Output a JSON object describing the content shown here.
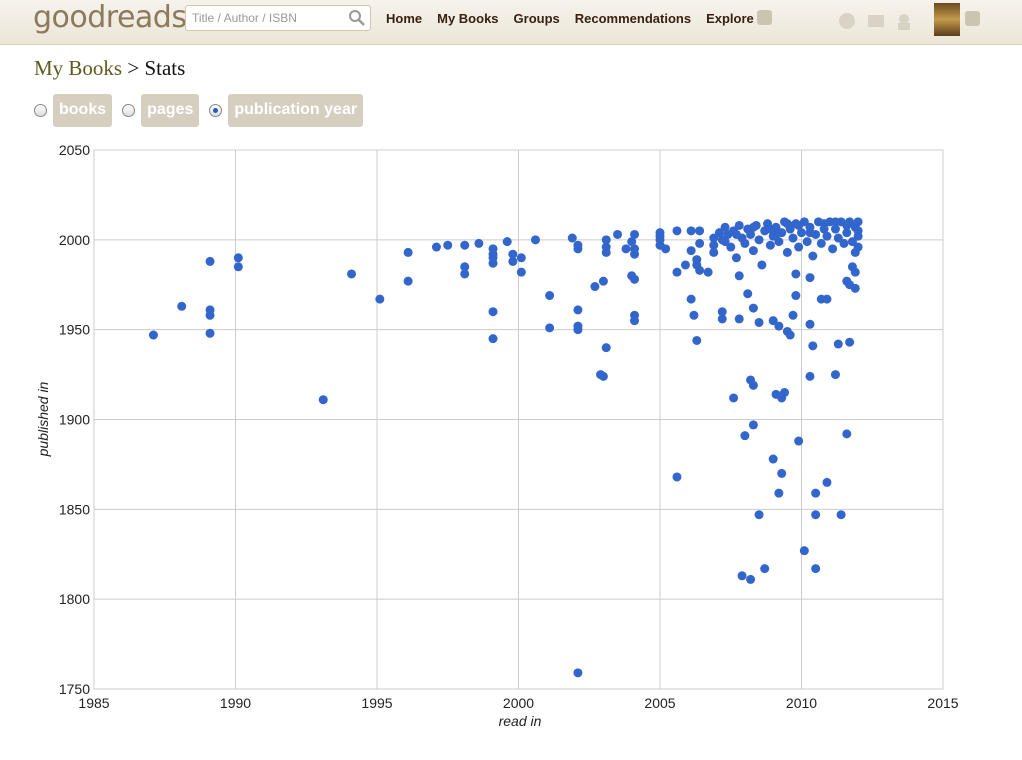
{
  "header": {
    "logo": "goodreads",
    "search_placeholder": "Title / Author / ISBN",
    "nav": [
      "Home",
      "My Books",
      "Groups",
      "Recommendations",
      "Explore"
    ]
  },
  "breadcrumb": {
    "link": "My Books",
    "current": "> Stats"
  },
  "options": {
    "labels": [
      "books",
      "pages",
      "publication year"
    ],
    "selected": 2
  },
  "chart_data": {
    "type": "scatter",
    "x_label": "read in",
    "y_label": "published in",
    "color": "#3366cc",
    "grid": true,
    "xlim": [
      1985,
      2015
    ],
    "xticks": [
      1985,
      1990,
      1995,
      2000,
      2005,
      2010,
      2015
    ],
    "ylim": [
      1750,
      2050
    ],
    "yticks": [
      1750,
      1800,
      1850,
      1900,
      1950,
      2000,
      2050
    ],
    "x": [
      1987.1,
      1988.1,
      1989.1,
      1989.1,
      1989.1,
      1989.1,
      1990.1,
      1990.1,
      1993.1,
      1994.1,
      1995.1,
      1996.1,
      1996.1,
      1997.1,
      1997.5,
      1998.1,
      1998.1,
      1998.1,
      1998.6,
      1999.1,
      1999.1,
      1999.1,
      1999.1,
      1999.1,
      1999.1,
      1999.6,
      1999.8,
      1999.8,
      2000.1,
      2000.1,
      2000.6,
      2001.1,
      2001.1,
      2001.9,
      2002.1,
      2002.1,
      2002.1,
      2002.1,
      2002.1,
      2002.1,
      2002.7,
      2002.9,
      2003.0,
      2003.0,
      2003.1,
      2003.1,
      2003.1,
      2003.1,
      2003.5,
      2003.8,
      2004.0,
      2004.1,
      2004.1,
      2004.1,
      2004.0,
      2004.1,
      2004.1,
      2004.1,
      2005.0,
      2005.0,
      2005.0,
      2005.0,
      2005.2,
      2005.6,
      2005.6,
      2005.6,
      2005.9,
      2006.1,
      2006.1,
      2006.1,
      2006.2,
      2006.3,
      2006.3,
      2006.3,
      2006.4,
      2006.4,
      2006.4,
      2006.9,
      2006.9,
      2006.9,
      2007.1,
      2007.2,
      2007.3,
      2007.4,
      2007.5,
      2007.6,
      2007.7,
      2007.8,
      2007.9,
      2008.0,
      2008.1,
      2008.2,
      2008.3,
      2008.4,
      2008.5,
      2008.6,
      2008.7,
      2008.8,
      2008.9,
      2009.0,
      2009.1,
      2009.2,
      2009.3,
      2009.4,
      2009.5,
      2009.6,
      2009.7,
      2009.8,
      2009.9,
      2010.0,
      2010.1,
      2010.2,
      2010.3,
      2010.4,
      2010.5,
      2010.6,
      2010.7,
      2010.8,
      2010.9,
      2011.0,
      2011.1,
      2011.2,
      2011.3,
      2011.4,
      2011.5,
      2011.6,
      2011.7,
      2011.8,
      2011.9,
      2012.0,
      2012.0,
      2011.9,
      2011.8,
      2012.0,
      2011.2,
      2010.8,
      2009.9,
      2009.5,
      2008.9,
      2008.3,
      2007.7,
      2007.3,
      2012.0,
      2011.6,
      2010.3,
      2009.1,
      2006.7,
      2007.2,
      2007.2,
      2007.6,
      2007.8,
      2007.8,
      2007.9,
      2008.0,
      2008.1,
      2008.2,
      2008.2,
      2008.3,
      2008.3,
      2008.3,
      2008.5,
      2008.5,
      2008.7,
      2009.0,
      2009.1,
      2009.0,
      2009.2,
      2009.3,
      2009.3,
      2009.4,
      2009.2,
      2009.5,
      2009.6,
      2009.7,
      2009.8,
      2009.8,
      2009.9,
      2010.1,
      2010.3,
      2010.3,
      2010.3,
      2010.4,
      2010.5,
      2010.5,
      2010.5,
      2010.7,
      2010.9,
      2010.9,
      2011.2,
      2011.3,
      2011.4,
      2011.6,
      2011.7,
      2011.6,
      2011.7,
      2011.9,
      2011.9
    ],
    "values": [
      1947,
      1963,
      1988,
      1961,
      1958,
      1948,
      1990,
      1985,
      1911,
      1981,
      1967,
      1993,
      1977,
      1996,
      1997,
      1997,
      1985,
      1981,
      1998,
      1995,
      1992,
      1990,
      1987,
      1960,
      1945,
      1999,
      1992,
      1988,
      1990,
      1982,
      2000,
      1969,
      1951,
      2001,
      1997,
      1995,
      1961,
      1952,
      1950,
      1759,
      1974,
      1925,
      1977,
      1924,
      2000,
      1996,
      1993,
      1940,
      2003,
      1995,
      1999,
      2003,
      1995,
      1992,
      1980,
      1978,
      1958,
      1955,
      2004,
      2002,
      2000,
      1997,
      1995,
      2005,
      1868,
      1982,
      1986,
      2005,
      1994,
      1967,
      1958,
      1944,
      1986,
      1989,
      2005,
      1998,
      1983,
      2001,
      1997,
      1993,
      2004,
      2000,
      2007,
      2003,
      1996,
      2005,
      1990,
      2008,
      2001,
      1998,
      2006,
      2003,
      1994,
      2008,
      2000,
      1986,
      2005,
      2009,
      1997,
      2002,
      2007,
      1999,
      2004,
      2010,
      1993,
      2006,
      2001,
      2009,
      1996,
      2004,
      2010,
      1999,
      2007,
      1991,
      2003,
      2010,
      1998,
      2006,
      2002,
      2010,
      1995,
      2006,
      2001,
      2010,
      1998,
      2004,
      2010,
      1999,
      2007,
      2002,
      2010,
      1993,
      1985,
      1996,
      2010,
      2009,
      2008,
      2009,
      2006,
      2007,
      2003,
      1999,
      2005,
      2008,
      2004,
      2003,
      1982,
      1960,
      1956,
      1912,
      1980,
      1956,
      1813,
      1891,
      1970,
      1811,
      1922,
      1919,
      1897,
      1962,
      1847,
      1954,
      1817,
      1878,
      1914,
      1955,
      1859,
      1870,
      1912,
      1915,
      1952,
      1949,
      1947,
      1958,
      1969,
      1981,
      1888,
      1827,
      1979,
      1924,
      1953,
      1941,
      1817,
      1847,
      1859,
      1967,
      1967,
      1865,
      1925,
      1942,
      1847,
      1892,
      1943,
      1977,
      1975,
      1973,
      1982
    ]
  }
}
